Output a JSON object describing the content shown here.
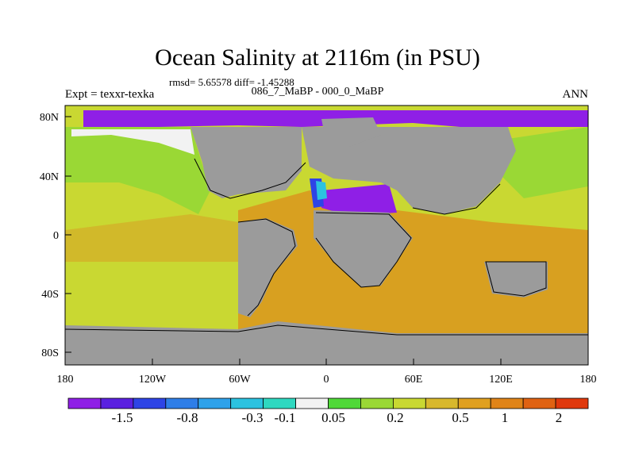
{
  "title": "Ocean Salinity at 2116m (in PSU)",
  "stats": "rmsd= 5.65578  diff= -1.45288",
  "subtitle": "086_7_MaBP - 000_0_MaBP",
  "left_label": "Expt = texxr-texka",
  "right_label": "ANN",
  "x_ticks": [
    "180",
    "120W",
    "60W",
    "0",
    "60E",
    "120E",
    "180"
  ],
  "y_ticks": [
    "80N",
    "40N",
    "0",
    "40S",
    "80S"
  ],
  "colorbar": {
    "colors": [
      "#8f1fe6",
      "#5a20e0",
      "#2e44e6",
      "#2f7ee8",
      "#2fa2ea",
      "#2cc2e0",
      "#2fd8c0",
      "#f2f2f2",
      "#4fd838",
      "#9ad835",
      "#c9d832",
      "#d8b82c",
      "#e0a020",
      "#e08418",
      "#e06212",
      "#e0380c"
    ],
    "labels": [
      "-1.5",
      "-0.8",
      "-0.3",
      "-0.1",
      "0.05",
      "0.2",
      "0.5",
      "1",
      "2"
    ]
  },
  "colors": {
    "land": "#9b9b9b",
    "ocean_yellow": "#c9d832",
    "ocean_orange": "#d8a020",
    "ocean_green": "#9ad835",
    "purple": "#8f1fe6"
  }
}
